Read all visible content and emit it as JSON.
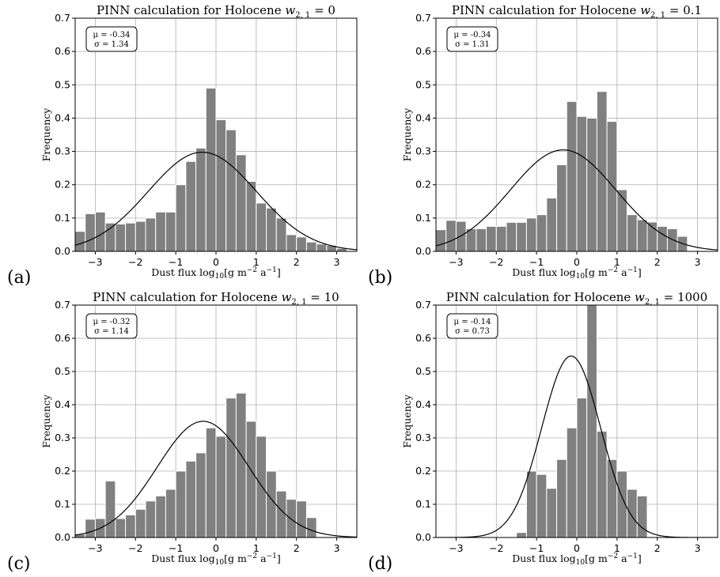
{
  "figure": {
    "axis_x_label": "Dust flux log",
    "axis_x_label_sub": "10",
    "axis_x_label_unit_pre": "[g m",
    "axis_x_label_exp1": "−2",
    "axis_x_label_mid": " a",
    "axis_x_label_exp2": "−1",
    "axis_x_label_post": "]",
    "axis_y_label": "Frequency",
    "title_prefix": "PINN calculation for Holocene",
    "title_var": "w",
    "title_sub": "2, 1",
    "mu_label": "μ = ",
    "sigma_label": "σ = "
  },
  "chart_data": [
    {
      "type": "bar",
      "panel": "(a)",
      "w_value": "0",
      "mu": "-0.34",
      "sigma": "1.34",
      "xlim": [
        -3.5,
        3.5
      ],
      "ylim": [
        0,
        0.7
      ],
      "xticks": [
        -3,
        -2,
        -1,
        0,
        1,
        2,
        3
      ],
      "xtick_labels": [
        "−3",
        "−2",
        "−1",
        "0",
        "1",
        "2",
        "3"
      ],
      "yticks": [
        0,
        0.1,
        0.2,
        0.3,
        0.4,
        0.5,
        0.6,
        0.7
      ],
      "ytick_labels": [
        "0.0",
        "0.1",
        "0.2",
        "0.3",
        "0.4",
        "0.5",
        "0.6",
        "0.7"
      ],
      "grid": true,
      "bin_start": -3.5,
      "bin_width": 0.25,
      "values": [
        0.06,
        0.113,
        0.118,
        0.085,
        0.082,
        0.085,
        0.09,
        0.1,
        0.118,
        0.118,
        0.2,
        0.27,
        0.31,
        0.49,
        0.395,
        0.365,
        0.29,
        0.21,
        0.145,
        0.13,
        0.1,
        0.05,
        0.043,
        0.028,
        0.022,
        0.018,
        0.009,
        0
      ],
      "fit": {
        "mu": -0.34,
        "sigma": 1.34
      }
    },
    {
      "type": "bar",
      "panel": "(b)",
      "w_value": "0.1",
      "mu": "-0.34",
      "sigma": "1.31",
      "xlim": [
        -3.5,
        3.5
      ],
      "ylim": [
        0,
        0.7
      ],
      "xticks": [
        -3,
        -2,
        -1,
        0,
        1,
        2,
        3
      ],
      "xtick_labels": [
        "−3",
        "−2",
        "−1",
        "0",
        "1",
        "2",
        "3"
      ],
      "yticks": [
        0,
        0.1,
        0.2,
        0.3,
        0.4,
        0.5,
        0.6,
        0.7
      ],
      "ytick_labels": [
        "0.0",
        "0.1",
        "0.2",
        "0.3",
        "0.4",
        "0.5",
        "0.6",
        "0.7"
      ],
      "grid": true,
      "bin_start": -3.5,
      "bin_width": 0.25,
      "values": [
        0.065,
        0.093,
        0.09,
        0.068,
        0.068,
        0.075,
        0.075,
        0.087,
        0.087,
        0.1,
        0.11,
        0.16,
        0.26,
        0.45,
        0.405,
        0.4,
        0.48,
        0.39,
        0.185,
        0.11,
        0.095,
        0.088,
        0.075,
        0.068,
        0.045,
        0,
        0,
        0
      ],
      "fit": {
        "mu": -0.34,
        "sigma": 1.31
      }
    },
    {
      "type": "bar",
      "panel": "(c)",
      "w_value": "10",
      "mu": "-0.32",
      "sigma": "1.14",
      "xlim": [
        -3.5,
        3.5
      ],
      "ylim": [
        0,
        0.7
      ],
      "xticks": [
        -3,
        -2,
        -1,
        0,
        1,
        2,
        3
      ],
      "xtick_labels": [
        "−3",
        "−2",
        "−1",
        "0",
        "1",
        "2",
        "3"
      ],
      "yticks": [
        0,
        0.1,
        0.2,
        0.3,
        0.4,
        0.5,
        0.6,
        0.7
      ],
      "ytick_labels": [
        "0.0",
        "0.1",
        "0.2",
        "0.3",
        "0.4",
        "0.5",
        "0.6",
        "0.7"
      ],
      "grid": true,
      "bin_start": -3.5,
      "bin_width": 0.25,
      "values": [
        0.01,
        0.055,
        0.057,
        0.17,
        0.057,
        0.068,
        0.085,
        0.11,
        0.125,
        0.145,
        0.2,
        0.23,
        0.255,
        0.33,
        0.305,
        0.42,
        0.435,
        0.35,
        0.305,
        0.2,
        0.14,
        0.115,
        0.11,
        0.06,
        0,
        0,
        0,
        0
      ],
      "fit": {
        "mu": -0.32,
        "sigma": 1.14
      }
    },
    {
      "type": "bar",
      "panel": "(d)",
      "w_value": "1000",
      "mu": "-0.14",
      "sigma": "0.73",
      "xlim": [
        -3.5,
        3.5
      ],
      "ylim": [
        0,
        0.7
      ],
      "xticks": [
        -3,
        -2,
        -1,
        0,
        1,
        2,
        3
      ],
      "xtick_labels": [
        "−3",
        "−2",
        "−1",
        "0",
        "1",
        "2",
        "3"
      ],
      "yticks": [
        0,
        0.1,
        0.2,
        0.3,
        0.4,
        0.5,
        0.6,
        0.7
      ],
      "ytick_labels": [
        "0.0",
        "0.1",
        "0.2",
        "0.3",
        "0.4",
        "0.5",
        "0.6",
        "0.7"
      ],
      "grid": true,
      "bin_start": -3.5,
      "bin_width": 0.25,
      "values": [
        0,
        0,
        0,
        0,
        0,
        0,
        0,
        0,
        0.015,
        0.2,
        0.19,
        0.148,
        0.235,
        0.33,
        0.42,
        0.7,
        0.32,
        0.235,
        0.2,
        0.145,
        0.125,
        0,
        0,
        0,
        0,
        0,
        0,
        0
      ],
      "fit": {
        "mu": -0.14,
        "sigma": 0.73
      }
    }
  ]
}
